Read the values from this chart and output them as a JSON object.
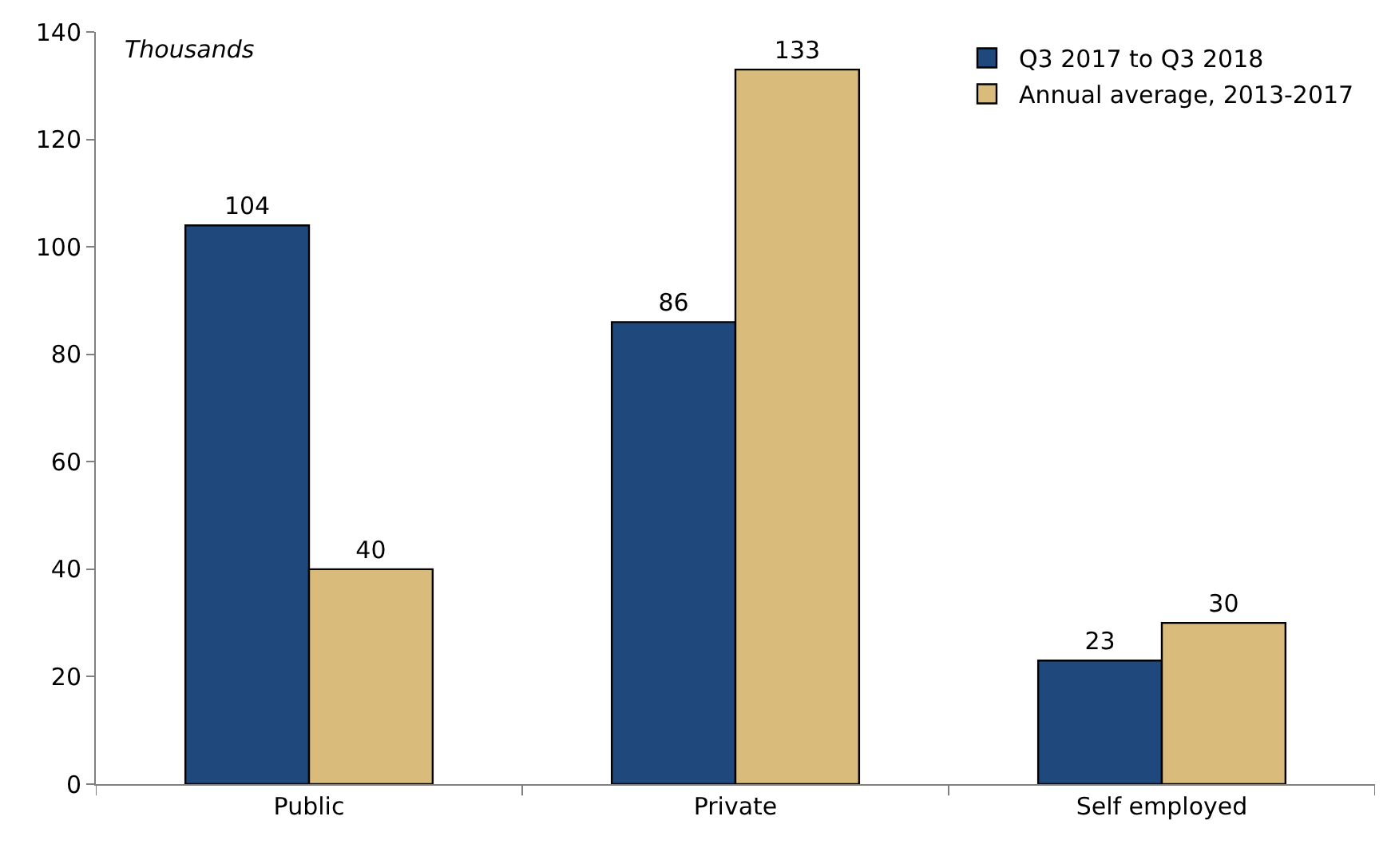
{
  "chart_data": {
    "type": "bar",
    "categories": [
      "Public",
      "Private",
      "Self employed"
    ],
    "series": [
      {
        "name": "Q3 2017 to Q3 2018",
        "color": "#1f497d",
        "values": [
          104,
          86,
          23
        ]
      },
      {
        "name": "Annual average, 2013-2017",
        "color": "#d9bc7c",
        "values": [
          40,
          133,
          30
        ]
      }
    ],
    "ylim": [
      0,
      140
    ],
    "yticks": [
      0,
      20,
      40,
      60,
      80,
      100,
      120,
      140
    ],
    "data_labels": true,
    "legend": "top right",
    "annotations": [
      "Thousands"
    ]
  }
}
